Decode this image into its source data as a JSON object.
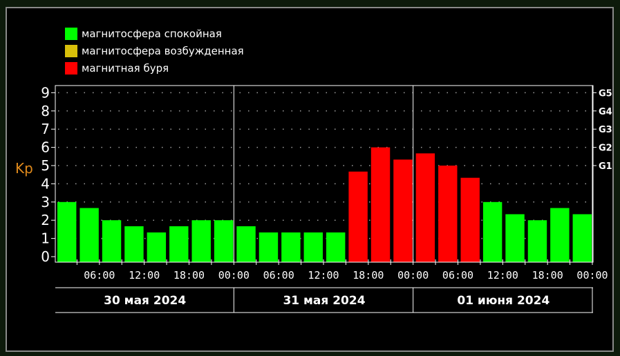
{
  "legend": {
    "items": [
      {
        "label": "магнитосфера спокойная",
        "color": "#00ff00"
      },
      {
        "label": "магнитосфера возбужденная",
        "color": "#d8c00a"
      },
      {
        "label": "магнитная буря",
        "color": "#ff0000"
      }
    ]
  },
  "colors": {
    "quiet": "#00ff00",
    "excited": "#d8c00a",
    "storm": "#ff0000",
    "background": "#000000",
    "axis": "#ffffff",
    "grid": "#a0a0a0",
    "ylabel": "#e08a1c"
  },
  "chart_data": {
    "type": "bar",
    "ylabel": "Kp",
    "ylim": [
      0,
      9
    ],
    "y_ticks": [
      "0",
      "1",
      "2",
      "3",
      "4",
      "5",
      "6",
      "7",
      "8",
      "9"
    ],
    "right_scale": [
      {
        "label": "G1",
        "kp": 5
      },
      {
        "label": "G2",
        "kp": 6
      },
      {
        "label": "G3",
        "kp": 7
      },
      {
        "label": "G4",
        "kp": 8
      },
      {
        "label": "G5",
        "kp": 9
      }
    ],
    "x_tick_labels": [
      "06:00",
      "12:00",
      "18:00",
      "00:00",
      "06:00",
      "12:00",
      "18:00",
      "00:00",
      "06:00",
      "12:00",
      "18:00",
      "00:00"
    ],
    "days": [
      "30 мая 2024",
      "31 мая 2024",
      "01 июня 2024"
    ],
    "grid": true,
    "bars": [
      {
        "kp": 3.0,
        "level": "quiet"
      },
      {
        "kp": 2.67,
        "level": "quiet"
      },
      {
        "kp": 2.0,
        "level": "quiet"
      },
      {
        "kp": 1.67,
        "level": "quiet"
      },
      {
        "kp": 1.33,
        "level": "quiet"
      },
      {
        "kp": 1.67,
        "level": "quiet"
      },
      {
        "kp": 2.0,
        "level": "quiet"
      },
      {
        "kp": 2.0,
        "level": "quiet"
      },
      {
        "kp": 1.67,
        "level": "quiet"
      },
      {
        "kp": 1.33,
        "level": "quiet"
      },
      {
        "kp": 1.33,
        "level": "quiet"
      },
      {
        "kp": 1.33,
        "level": "quiet"
      },
      {
        "kp": 1.33,
        "level": "quiet"
      },
      {
        "kp": 4.67,
        "level": "storm"
      },
      {
        "kp": 6.0,
        "level": "storm"
      },
      {
        "kp": 5.33,
        "level": "storm"
      },
      {
        "kp": 5.67,
        "level": "storm"
      },
      {
        "kp": 5.0,
        "level": "storm"
      },
      {
        "kp": 4.33,
        "level": "storm"
      },
      {
        "kp": 3.0,
        "level": "quiet"
      },
      {
        "kp": 2.33,
        "level": "quiet"
      },
      {
        "kp": 2.0,
        "level": "quiet"
      },
      {
        "kp": 2.67,
        "level": "quiet"
      },
      {
        "kp": 2.33,
        "level": "quiet"
      }
    ]
  }
}
